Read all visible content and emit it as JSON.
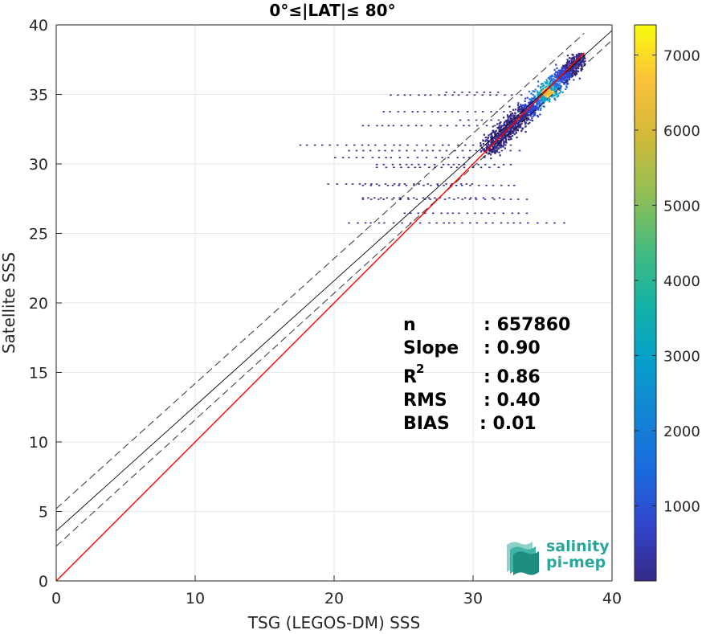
{
  "chart_data": {
    "type": "heatmap",
    "title": "0°≤|LAT|≤ 80°",
    "xlabel": "TSG (LEGOS-DM) SSS",
    "ylabel": "Satellite SSS",
    "xlim": [
      0,
      40
    ],
    "ylim": [
      0,
      40
    ],
    "xticks": [
      "0",
      "10",
      "20",
      "30",
      "40"
    ],
    "yticks": [
      "0",
      "5",
      "10",
      "15",
      "20",
      "25",
      "30",
      "35",
      "40"
    ],
    "grid": true,
    "colorbar": {
      "range": [
        0,
        7400
      ],
      "ticks": [
        "1000",
        "2000",
        "3000",
        "4000",
        "5000",
        "6000",
        "7000"
      ],
      "colormap": "parula"
    },
    "stats": [
      {
        "label": "n",
        "value": ": 657860"
      },
      {
        "label": "Slope",
        "value": ": 0.90"
      },
      {
        "label": "R",
        "sup": "2",
        "value": ": 0.86"
      },
      {
        "label": "RMS",
        "value": ": 0.40"
      },
      {
        "label": "BIAS",
        "value": ": 0.01"
      }
    ],
    "lines": {
      "identity": {
        "intercept": 0,
        "slope": 1,
        "color": "#ff0000"
      },
      "fit": {
        "intercept": 3.6,
        "slope": 0.9,
        "color": "#000000"
      },
      "fit_bounds_offset": 1.0
    }
  },
  "logo": {
    "line1": "salinity",
    "line2": "pi-mep"
  }
}
